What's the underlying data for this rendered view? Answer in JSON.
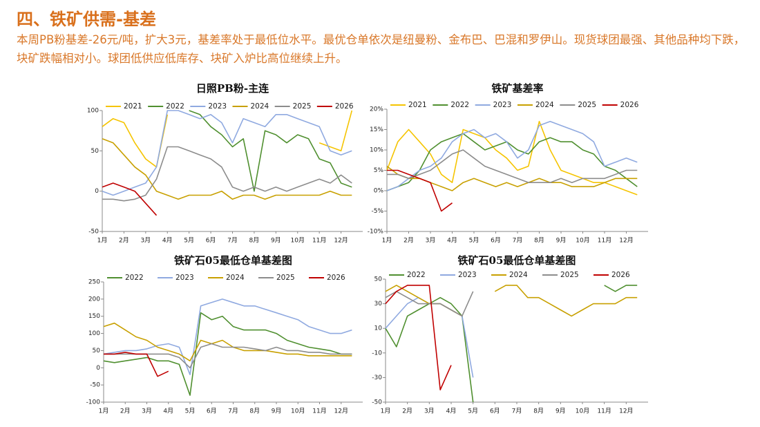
{
  "header": {
    "title": "四、铁矿供需-基差",
    "text": "本周PB粉基差-26元/吨，扩大3元，基差率处于最低位水平。最优仓单依次是纽曼粉、金布巴、巴混和罗伊山。现货球团最强、其他品种均下跌，块矿跌幅相对小。球团低供应低库存、块矿入炉比高位继续上升。"
  },
  "chart_data": [
    {
      "type": "line",
      "title": "日照PB粉-主连",
      "x": [
        1,
        1.5,
        2,
        2.5,
        3,
        3.5,
        4,
        4.5,
        5,
        5.5,
        6,
        6.5,
        7,
        7.5,
        8,
        8.5,
        9,
        9.5,
        10,
        10.5,
        11,
        11.5,
        12,
        12.5
      ],
      "xlim": [
        1,
        13
      ],
      "xticks": [
        {
          "value": 1,
          "label": "1月"
        },
        {
          "value": 2,
          "label": "2月"
        },
        {
          "value": 3,
          "label": "3月"
        },
        {
          "value": 4,
          "label": "4月"
        },
        {
          "value": 5,
          "label": "5月"
        },
        {
          "value": 6,
          "label": "6月"
        },
        {
          "value": 7,
          "label": "7月"
        },
        {
          "value": 8,
          "label": "8月"
        },
        {
          "value": 9,
          "label": "9月"
        },
        {
          "value": 10,
          "label": "10月"
        },
        {
          "value": 11,
          "label": "11月"
        },
        {
          "value": 12,
          "label": "12月"
        }
      ],
      "ylim": [
        -50,
        100
      ],
      "yticks": [
        -50,
        0,
        50,
        100
      ],
      "series": [
        {
          "name": "2021",
          "color": "#f5c400",
          "values": [
            80,
            90,
            85,
            60,
            40,
            30,
            95,
            null,
            null,
            null,
            null,
            null,
            null,
            null,
            null,
            null,
            null,
            null,
            null,
            null,
            60,
            55,
            50,
            100
          ]
        },
        {
          "name": "2022",
          "color": "#4f8f2f",
          "values": [
            null,
            null,
            null,
            null,
            null,
            null,
            null,
            null,
            100,
            95,
            80,
            70,
            55,
            65,
            0,
            75,
            70,
            60,
            70,
            65,
            40,
            35,
            10,
            5
          ]
        },
        {
          "name": "2023",
          "color": "#8fa9e0",
          "values": [
            0,
            -5,
            0,
            5,
            10,
            30,
            100,
            100,
            95,
            90,
            95,
            85,
            60,
            90,
            85,
            80,
            95,
            95,
            90,
            85,
            80,
            50,
            45,
            50
          ]
        },
        {
          "name": "2024",
          "color": "#c8a000",
          "values": [
            65,
            60,
            45,
            30,
            20,
            0,
            -5,
            -10,
            -5,
            -5,
            -5,
            0,
            -10,
            -5,
            -5,
            -10,
            -5,
            -5,
            -5,
            -5,
            -5,
            0,
            -5,
            -5
          ]
        },
        {
          "name": "2025",
          "color": "#8c8c8c",
          "values": [
            -10,
            -10,
            -12,
            -10,
            -5,
            15,
            55,
            55,
            50,
            45,
            40,
            30,
            5,
            0,
            5,
            0,
            5,
            0,
            5,
            10,
            15,
            10,
            20,
            10
          ]
        },
        {
          "name": "2026",
          "color": "#c00000",
          "values": [
            5,
            10,
            5,
            0,
            -15,
            -30,
            null,
            null,
            null,
            null,
            null,
            null,
            null,
            null,
            null,
            null,
            null,
            null,
            null,
            null,
            null,
            null,
            null,
            null
          ]
        }
      ]
    },
    {
      "type": "line",
      "title": "铁矿基差率",
      "x": [
        1,
        1.5,
        2,
        2.5,
        3,
        3.5,
        4,
        4.5,
        5,
        5.5,
        6,
        6.5,
        7,
        7.5,
        8,
        8.5,
        9,
        9.5,
        10,
        10.5,
        11,
        11.5,
        12,
        12.5
      ],
      "xlim": [
        1,
        13
      ],
      "xticks": [
        {
          "value": 1,
          "label": "1月"
        },
        {
          "value": 2,
          "label": "2月"
        },
        {
          "value": 3,
          "label": "3月"
        },
        {
          "value": 4,
          "label": "4月"
        },
        {
          "value": 5,
          "label": "5月"
        },
        {
          "value": 6,
          "label": "6月"
        },
        {
          "value": 7,
          "label": "7月"
        },
        {
          "value": 8,
          "label": "8月"
        },
        {
          "value": 9,
          "label": "9月"
        },
        {
          "value": 10,
          "label": "10月"
        },
        {
          "value": 11,
          "label": "11月"
        },
        {
          "value": 12,
          "label": "12月"
        }
      ],
      "ylim": [
        -10,
        20
      ],
      "yticks": [
        {
          "value": -10,
          "label": "-10%"
        },
        {
          "value": -5,
          "label": "-5%"
        },
        {
          "value": 0,
          "label": "0%"
        },
        {
          "value": 5,
          "label": "5%"
        },
        {
          "value": 10,
          "label": "10%"
        },
        {
          "value": 15,
          "label": "15%"
        },
        {
          "value": 20,
          "label": "20%"
        }
      ],
      "series": [
        {
          "name": "2021",
          "color": "#f5c400",
          "values": [
            5,
            12,
            15,
            12,
            9,
            4,
            2,
            15,
            14,
            13,
            10,
            8,
            5,
            6,
            17,
            10,
            5,
            4,
            3,
            2,
            2,
            1,
            0,
            -1
          ]
        },
        {
          "name": "2022",
          "color": "#4f8f2f",
          "values": [
            0,
            1,
            2,
            5,
            10,
            12,
            13,
            14,
            12,
            10,
            11,
            12,
            10,
            9,
            12,
            13,
            12,
            12,
            10,
            9,
            6,
            5,
            3,
            1
          ]
        },
        {
          "name": "2023",
          "color": "#8fa9e0",
          "values": [
            0,
            1,
            3,
            5,
            6,
            8,
            12,
            14,
            15,
            13,
            14,
            12,
            8,
            10,
            16,
            17,
            16,
            15,
            14,
            12,
            6,
            7,
            8,
            7
          ]
        },
        {
          "name": "2024",
          "color": "#c8a000",
          "values": [
            6,
            4,
            3,
            3,
            2,
            1,
            0,
            2,
            3,
            2,
            1,
            2,
            1,
            2,
            3,
            2,
            2,
            1,
            1,
            1,
            2,
            3,
            3,
            3
          ]
        },
        {
          "name": "2025",
          "color": "#8c8c8c",
          "values": [
            4,
            4,
            3,
            4,
            5,
            7,
            9,
            10,
            8,
            6,
            5,
            4,
            3,
            2,
            2,
            2,
            3,
            2,
            3,
            3,
            3,
            4,
            5,
            5
          ]
        },
        {
          "name": "2026",
          "color": "#c00000",
          "values": [
            5,
            5,
            4,
            3,
            2,
            -5,
            -3,
            null,
            null,
            null,
            null,
            null,
            null,
            null,
            null,
            null,
            null,
            null,
            null,
            null,
            null,
            null,
            null,
            null
          ]
        }
      ]
    },
    {
      "type": "line",
      "title": "铁矿石05最低仓单基差图",
      "x": [
        1,
        1.5,
        2,
        2.5,
        3,
        3.5,
        4,
        4.5,
        5,
        5.5,
        6,
        6.5,
        7,
        7.5,
        8,
        8.5,
        9,
        9.5,
        10,
        10.5,
        11,
        11.5,
        12,
        12.5
      ],
      "xlim": [
        1,
        13
      ],
      "xticks": [
        {
          "value": 1,
          "label": "1月"
        },
        {
          "value": 2,
          "label": "2月"
        },
        {
          "value": 3,
          "label": "3月"
        },
        {
          "value": 4,
          "label": "4月"
        },
        {
          "value": 5,
          "label": "5月"
        },
        {
          "value": 6,
          "label": "6月"
        },
        {
          "value": 7,
          "label": "7月"
        },
        {
          "value": 8,
          "label": "8月"
        },
        {
          "value": 9,
          "label": "9月"
        },
        {
          "value": 10,
          "label": "10月"
        },
        {
          "value": 11,
          "label": "11月"
        },
        {
          "value": 12,
          "label": "12月"
        }
      ],
      "ylim": [
        -100,
        250
      ],
      "yticks": [
        -100,
        -50,
        0,
        50,
        100,
        150,
        200,
        250
      ],
      "series": [
        {
          "name": "2022",
          "color": "#4f8f2f",
          "values": [
            20,
            15,
            20,
            25,
            30,
            20,
            20,
            10,
            -80,
            160,
            140,
            150,
            120,
            110,
            110,
            110,
            100,
            80,
            70,
            60,
            55,
            50,
            40,
            40
          ]
        },
        {
          "name": "2023",
          "color": "#8fa9e0",
          "values": [
            40,
            45,
            50,
            50,
            55,
            65,
            70,
            60,
            -20,
            180,
            190,
            200,
            190,
            180,
            180,
            170,
            160,
            150,
            140,
            120,
            110,
            100,
            100,
            110
          ]
        },
        {
          "name": "2024",
          "color": "#c8a000",
          "values": [
            120,
            130,
            110,
            90,
            80,
            60,
            50,
            40,
            20,
            80,
            70,
            80,
            60,
            50,
            50,
            50,
            45,
            40,
            40,
            35,
            35,
            35,
            35,
            35
          ]
        },
        {
          "name": "2025",
          "color": "#8c8c8c",
          "values": [
            40,
            40,
            40,
            40,
            40,
            40,
            40,
            30,
            0,
            60,
            70,
            60,
            60,
            60,
            55,
            50,
            60,
            50,
            50,
            45,
            45,
            40,
            40,
            40
          ]
        },
        {
          "name": "2026",
          "color": "#c00000",
          "values": [
            40,
            40,
            45,
            40,
            40,
            -25,
            -10,
            null,
            null,
            null,
            null,
            null,
            null,
            null,
            null,
            null,
            null,
            null,
            null,
            null,
            null,
            null,
            null,
            null
          ]
        }
      ]
    },
    {
      "type": "line",
      "title": "铁矿石05最低仓单基差图",
      "x": [
        1,
        1.5,
        2,
        2.5,
        3,
        3.5,
        4,
        4.5,
        5,
        5.5,
        6,
        6.5,
        7,
        7.5,
        8,
        8.5,
        9,
        9.5,
        10,
        10.5,
        11,
        11.5,
        12,
        12.5
      ],
      "xlim": [
        1,
        13
      ],
      "xticks": [
        {
          "value": 1,
          "label": "1月"
        },
        {
          "value": 2,
          "label": "2月"
        },
        {
          "value": 3,
          "label": "3月"
        },
        {
          "value": 4,
          "label": "4月"
        },
        {
          "value": 5,
          "label": "5月"
        },
        {
          "value": 6,
          "label": "6月"
        },
        {
          "value": 7,
          "label": "7月"
        },
        {
          "value": 8,
          "label": "8月"
        },
        {
          "value": 9,
          "label": "9月"
        },
        {
          "value": 10,
          "label": "10月"
        },
        {
          "value": 11,
          "label": "11月"
        },
        {
          "value": 12,
          "label": "12月"
        }
      ],
      "ylim": [
        -50,
        50
      ],
      "yticks": [
        -50,
        -30,
        -10,
        10,
        30,
        50
      ],
      "series": [
        {
          "name": "2022",
          "color": "#4f8f2f",
          "values": [
            10,
            -5,
            20,
            25,
            30,
            35,
            30,
            20,
            -50,
            null,
            null,
            null,
            null,
            null,
            null,
            null,
            null,
            null,
            null,
            null,
            45,
            40,
            45,
            45
          ]
        },
        {
          "name": "2023",
          "color": "#8fa9e0",
          "values": [
            10,
            20,
            30,
            35,
            30,
            30,
            25,
            20,
            -30,
            null,
            null,
            null,
            null,
            null,
            null,
            null,
            null,
            null,
            null,
            null,
            null,
            null,
            null,
            null
          ]
        },
        {
          "name": "2024",
          "color": "#c8a000",
          "values": [
            40,
            45,
            40,
            35,
            30,
            30,
            25,
            20,
            null,
            null,
            40,
            45,
            45,
            35,
            35,
            30,
            25,
            20,
            25,
            30,
            30,
            30,
            35,
            35
          ]
        },
        {
          "name": "2025",
          "color": "#8c8c8c",
          "values": [
            35,
            40,
            35,
            30,
            30,
            30,
            25,
            20,
            40,
            null,
            null,
            null,
            null,
            null,
            null,
            null,
            null,
            null,
            null,
            null,
            null,
            null,
            null,
            null
          ]
        },
        {
          "name": "2026",
          "color": "#c00000",
          "values": [
            30,
            40,
            45,
            45,
            45,
            -40,
            -20,
            null,
            null,
            null,
            null,
            null,
            null,
            null,
            null,
            null,
            null,
            null,
            null,
            null,
            null,
            null,
            null,
            null
          ]
        }
      ]
    }
  ]
}
